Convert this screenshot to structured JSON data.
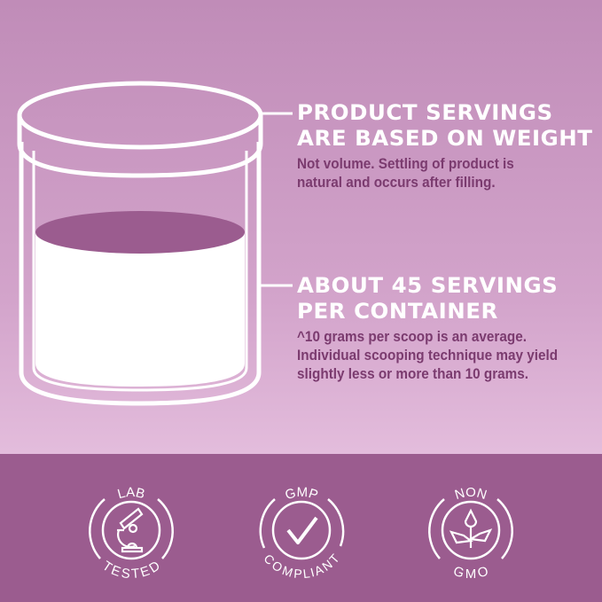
{
  "colors": {
    "band": "#9b5c8f",
    "heading": "#ffffff",
    "body_text": "#7b3b6f",
    "fill": "#9b5c8f"
  },
  "callouts": [
    {
      "heading_line1": "PRODUCT SERVINGS",
      "heading_line2": "ARE BASED ON WEIGHT",
      "text_line1": "Not volume. Settling of product is",
      "text_line2": "natural and occurs after filling."
    },
    {
      "heading_line1": "ABOUT 45 SERVINGS",
      "heading_line2": "PER CONTAINER",
      "text_line1": "^10 grams per scoop is an average.",
      "text_line2": "Individual scooping technique may yield",
      "text_line3": "slightly less or more than 10 grams."
    }
  ],
  "badges": [
    {
      "top": "LAB",
      "bottom": "TESTED",
      "icon": "microscope-icon"
    },
    {
      "top": "GMP",
      "bottom": "COMPLIANT",
      "icon": "checkmark-icon"
    },
    {
      "top": "NON",
      "bottom": "GMO",
      "icon": "sprout-icon"
    }
  ]
}
